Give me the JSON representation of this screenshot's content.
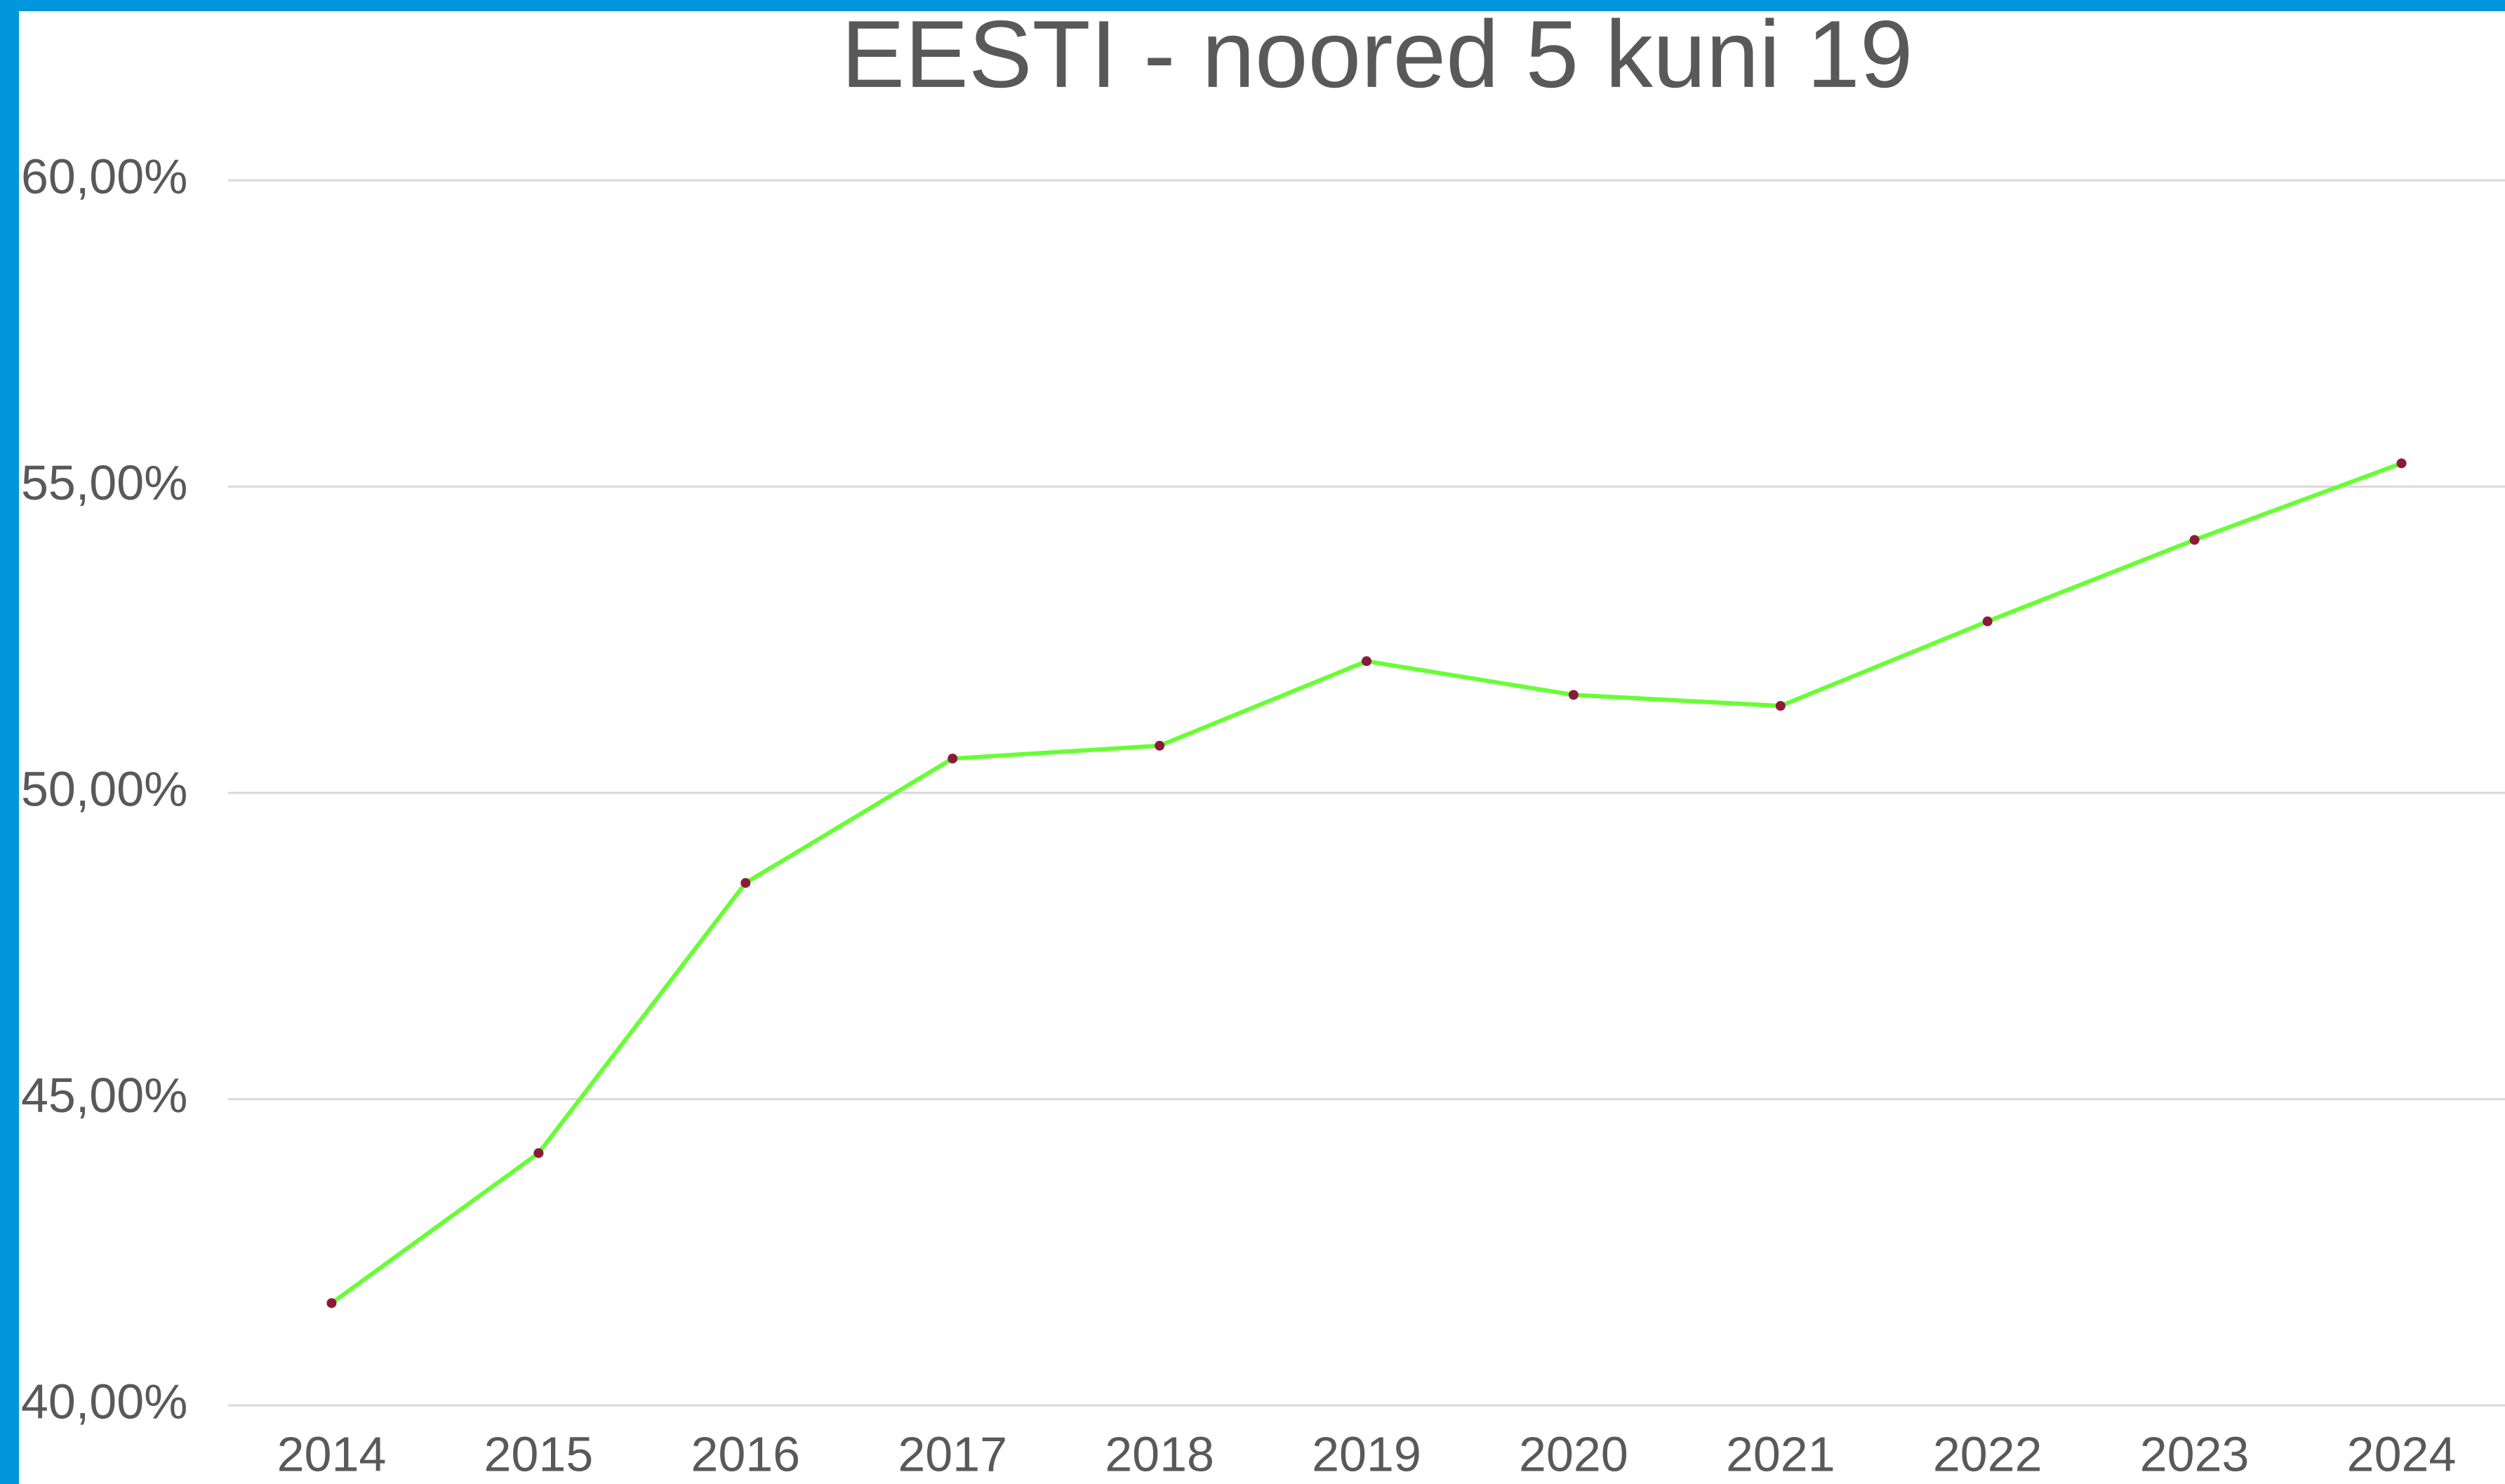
{
  "chart_data": {
    "type": "line",
    "title": "EESTI - noored 5 kuni 19",
    "categories": [
      "2014",
      "2015",
      "2016",
      "2017",
      "2018",
      "2019",
      "2020",
      "2021",
      "2022",
      "2023",
      "2024"
    ],
    "series": [
      {
        "name": "EESTI - noored 5 kuni 19",
        "color": "#66ff33",
        "marker_color": "#8b1a3a",
        "values": [
          41.67,
          44.12,
          48.53,
          50.56,
          50.77,
          52.15,
          51.6,
          51.42,
          52.8,
          54.13,
          55.38
        ]
      }
    ],
    "ylim": [
      40,
      60
    ],
    "yticks": [
      {
        "value": 40,
        "label": "40,00%"
      },
      {
        "value": 45,
        "label": "45,00%"
      },
      {
        "value": 50,
        "label": "50,00%"
      },
      {
        "value": 55,
        "label": "55,00%"
      },
      {
        "value": 60,
        "label": "60,00%"
      }
    ],
    "grid": true,
    "legend": false
  }
}
